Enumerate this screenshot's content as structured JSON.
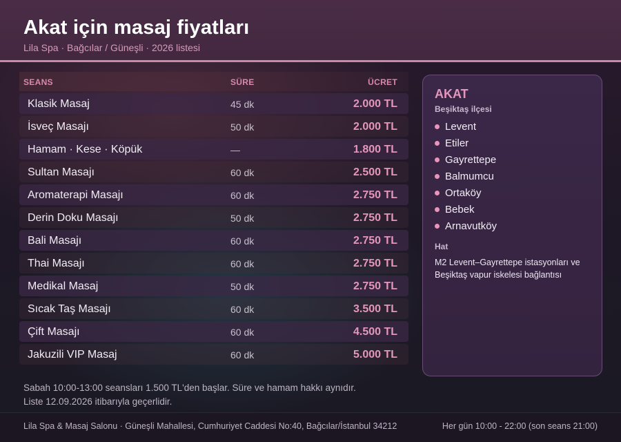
{
  "header": {
    "title": "Akat için masaj fiyatları",
    "subtitle": "Lila Spa · Bağcılar / Güneşli · 2026 listesi"
  },
  "table": {
    "columns": {
      "name": "SEANS",
      "duration": "SÜRE",
      "price": "ÜCRET"
    },
    "rows": [
      {
        "name": "Klasik Masaj",
        "duration": "45 dk",
        "price": "2.000 TL"
      },
      {
        "name": "İsveç Masajı",
        "duration": "50 dk",
        "price": "2.000 TL"
      },
      {
        "name": "Hamam · Kese · Köpük",
        "duration": "—",
        "price": "1.800 TL"
      },
      {
        "name": "Sultan Masajı",
        "duration": "60 dk",
        "price": "2.500 TL"
      },
      {
        "name": "Aromaterapi Masajı",
        "duration": "60 dk",
        "price": "2.750 TL"
      },
      {
        "name": "Derin Doku Masajı",
        "duration": "50 dk",
        "price": "2.750 TL"
      },
      {
        "name": "Bali Masajı",
        "duration": "60 dk",
        "price": "2.750 TL"
      },
      {
        "name": "Thai Masajı",
        "duration": "60 dk",
        "price": "2.750 TL"
      },
      {
        "name": "Medikal Masaj",
        "duration": "50 dk",
        "price": "2.750 TL"
      },
      {
        "name": "Sıcak Taş Masajı",
        "duration": "60 dk",
        "price": "3.500 TL"
      },
      {
        "name": "Çift Masajı",
        "duration": "60 dk",
        "price": "4.500 TL"
      },
      {
        "name": "Jakuzili VIP Masaj",
        "duration": "60 dk",
        "price": "5.000 TL"
      }
    ]
  },
  "sidebar": {
    "title": "AKAT",
    "district": "Beşiktaş ilçesi",
    "neighborhoods": [
      "Levent",
      "Etiler",
      "Gayrettepe",
      "Balmumcu",
      "Ortaköy",
      "Bebek",
      "Arnavutköy"
    ],
    "transit_title": "Hat",
    "transit_text": "M2 Levent–Gayrettepe istasyonları ve Beşiktaş vapur iskelesi bağlantısı"
  },
  "notes": {
    "line1": "Sabah 10:00-13:00 seansları 1.500 TL'den başlar. Süre ve hamam hakkı aynıdır.",
    "line2": "Liste 12.09.2026 itibarıyla geçerlidir."
  },
  "footer": {
    "address": "Lila Spa & Masaj Salonu · Güneşli Mahallesi, Cumhuriyet Caddesi No:40, Bağcılar/İstanbul 34212",
    "hours": "Her gün 10:00 - 22:00 (son seans 21:00)"
  },
  "colors": {
    "accent": "#e596bb",
    "header_bg": "#4a2c46",
    "panel_bg": "#3b2748"
  }
}
